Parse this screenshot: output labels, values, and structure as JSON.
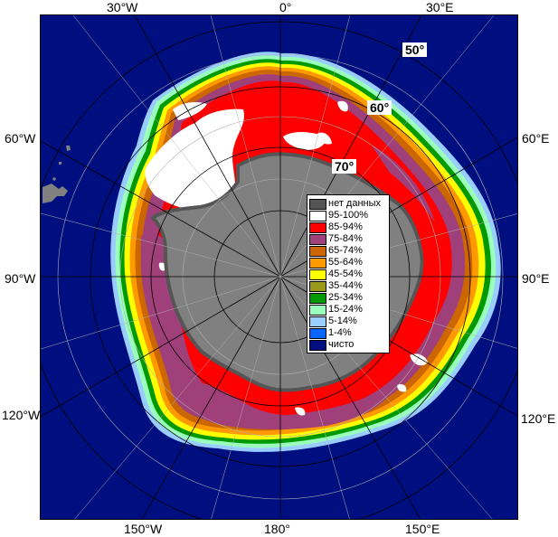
{
  "map": {
    "lon_labels": {
      "top_30w": "30°W",
      "top_0": "0°",
      "top_30e": "30°E",
      "left_60w": "60°W",
      "left_90w": "90°W",
      "left_120w": "120°W",
      "right_60e": "60°E",
      "right_90e": "90°E",
      "right_120e": "120°E",
      "bottom_150w": "150°W",
      "bottom_180": "180°",
      "bottom_150e": "150°E"
    },
    "lat_labels": {
      "lat50": "50°",
      "lat60": "60°",
      "lat70": "70°"
    },
    "colors": {
      "ocean": "#000f80",
      "land": "#808080",
      "no_data": "#555555",
      "c95": "#ffffff",
      "c85": "#ff0000",
      "c75": "#a0407a",
      "c65": "#cc6600",
      "c55": "#ff9900",
      "c45": "#ffff00",
      "c35": "#99991a",
      "c25": "#009900",
      "c15": "#99ffbb",
      "c5": "#99ccff",
      "c1": "#0066ff",
      "clear": "#000f80"
    }
  },
  "legend": {
    "items": [
      {
        "label": "нет данных",
        "color": "#555555"
      },
      {
        "label": "95-100%",
        "color": "#ffffff"
      },
      {
        "label": "85-94%",
        "color": "#ff0000"
      },
      {
        "label": "75-84%",
        "color": "#a0407a"
      },
      {
        "label": "65-74%",
        "color": "#cc6600"
      },
      {
        "label": "55-64%",
        "color": "#ff9900"
      },
      {
        "label": "45-54%",
        "color": "#ffff00"
      },
      {
        "label": "35-44%",
        "color": "#99991a"
      },
      {
        "label": "25-34%",
        "color": "#009900"
      },
      {
        "label": "15-24%",
        "color": "#99ffbb"
      },
      {
        "label": "5-14%",
        "color": "#99ccff"
      },
      {
        "label": "1-4%",
        "color": "#0066ff"
      },
      {
        "label": "чисто",
        "color": "#000f80"
      }
    ]
  }
}
